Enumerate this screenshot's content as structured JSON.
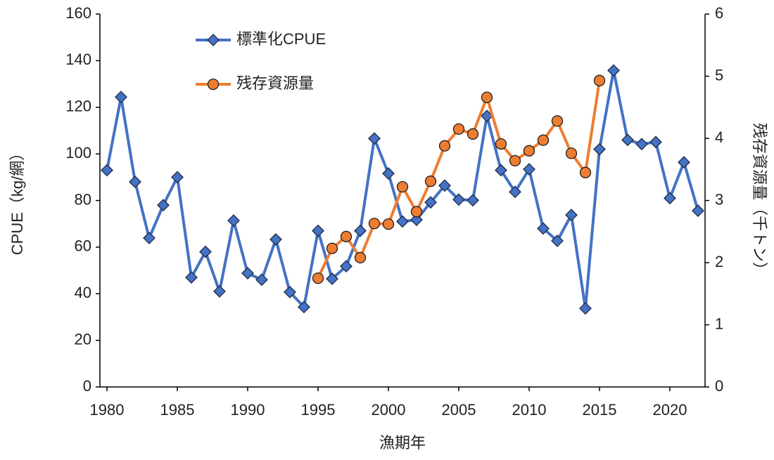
{
  "chart_data": {
    "type": "line",
    "x_label": "漁期年",
    "y_label": "CPUE（kg/網）",
    "y2_label": "残存資源量（千トン）",
    "x": [
      1980,
      1981,
      1982,
      1983,
      1984,
      1985,
      1986,
      1987,
      1988,
      1989,
      1990,
      1991,
      1992,
      1993,
      1994,
      1995,
      1996,
      1997,
      1998,
      1999,
      2000,
      2001,
      2002,
      2003,
      2004,
      2005,
      2006,
      2007,
      2008,
      2009,
      2010,
      2011,
      2012,
      2013,
      2014,
      2015,
      2016,
      2017,
      2018,
      2019,
      2020,
      2021,
      2022
    ],
    "series": [
      {
        "name": "標準化CPUE",
        "color": "#4472c4",
        "marker": "diamond",
        "axis": "y",
        "values": [
          93,
          124.4,
          88,
          63.9,
          78,
          90,
          47,
          58,
          41,
          71.4,
          48.8,
          46,
          63.3,
          40.7,
          34.3,
          67,
          46.4,
          51.8,
          67,
          106.6,
          91.6,
          71,
          71.7,
          79.2,
          86.4,
          80.4,
          80.1,
          116.3,
          93,
          83.7,
          93.4,
          68,
          62.7,
          73.8,
          33.7,
          102,
          135.8,
          106,
          104.2,
          105.1,
          81,
          96.4,
          75.6
        ]
      },
      {
        "name": "残存資源量",
        "color": "#ed7d31",
        "marker": "circle",
        "axis": "y2",
        "values": [
          null,
          null,
          null,
          null,
          null,
          null,
          null,
          null,
          null,
          null,
          null,
          null,
          null,
          null,
          null,
          1.75,
          2.23,
          2.42,
          2.08,
          2.63,
          2.62,
          3.22,
          2.82,
          3.31,
          3.88,
          4.15,
          4.07,
          4.66,
          3.91,
          3.64,
          3.8,
          3.97,
          4.28,
          3.76,
          3.45,
          4.93,
          null,
          null,
          null,
          null,
          null,
          null,
          null
        ]
      }
    ],
    "xlim": [
      1979.5,
      2022.5
    ],
    "xticks": [
      1980,
      1985,
      1990,
      1995,
      2000,
      2005,
      2010,
      2015,
      2020
    ],
    "ylim": [
      0,
      160
    ],
    "yticks": [
      0,
      20,
      40,
      60,
      80,
      100,
      120,
      140,
      160
    ],
    "y2lim": [
      0,
      6
    ],
    "y2ticks": [
      0,
      1,
      2,
      3,
      4,
      5,
      6
    ],
    "grid": false,
    "legend": "upper left"
  }
}
